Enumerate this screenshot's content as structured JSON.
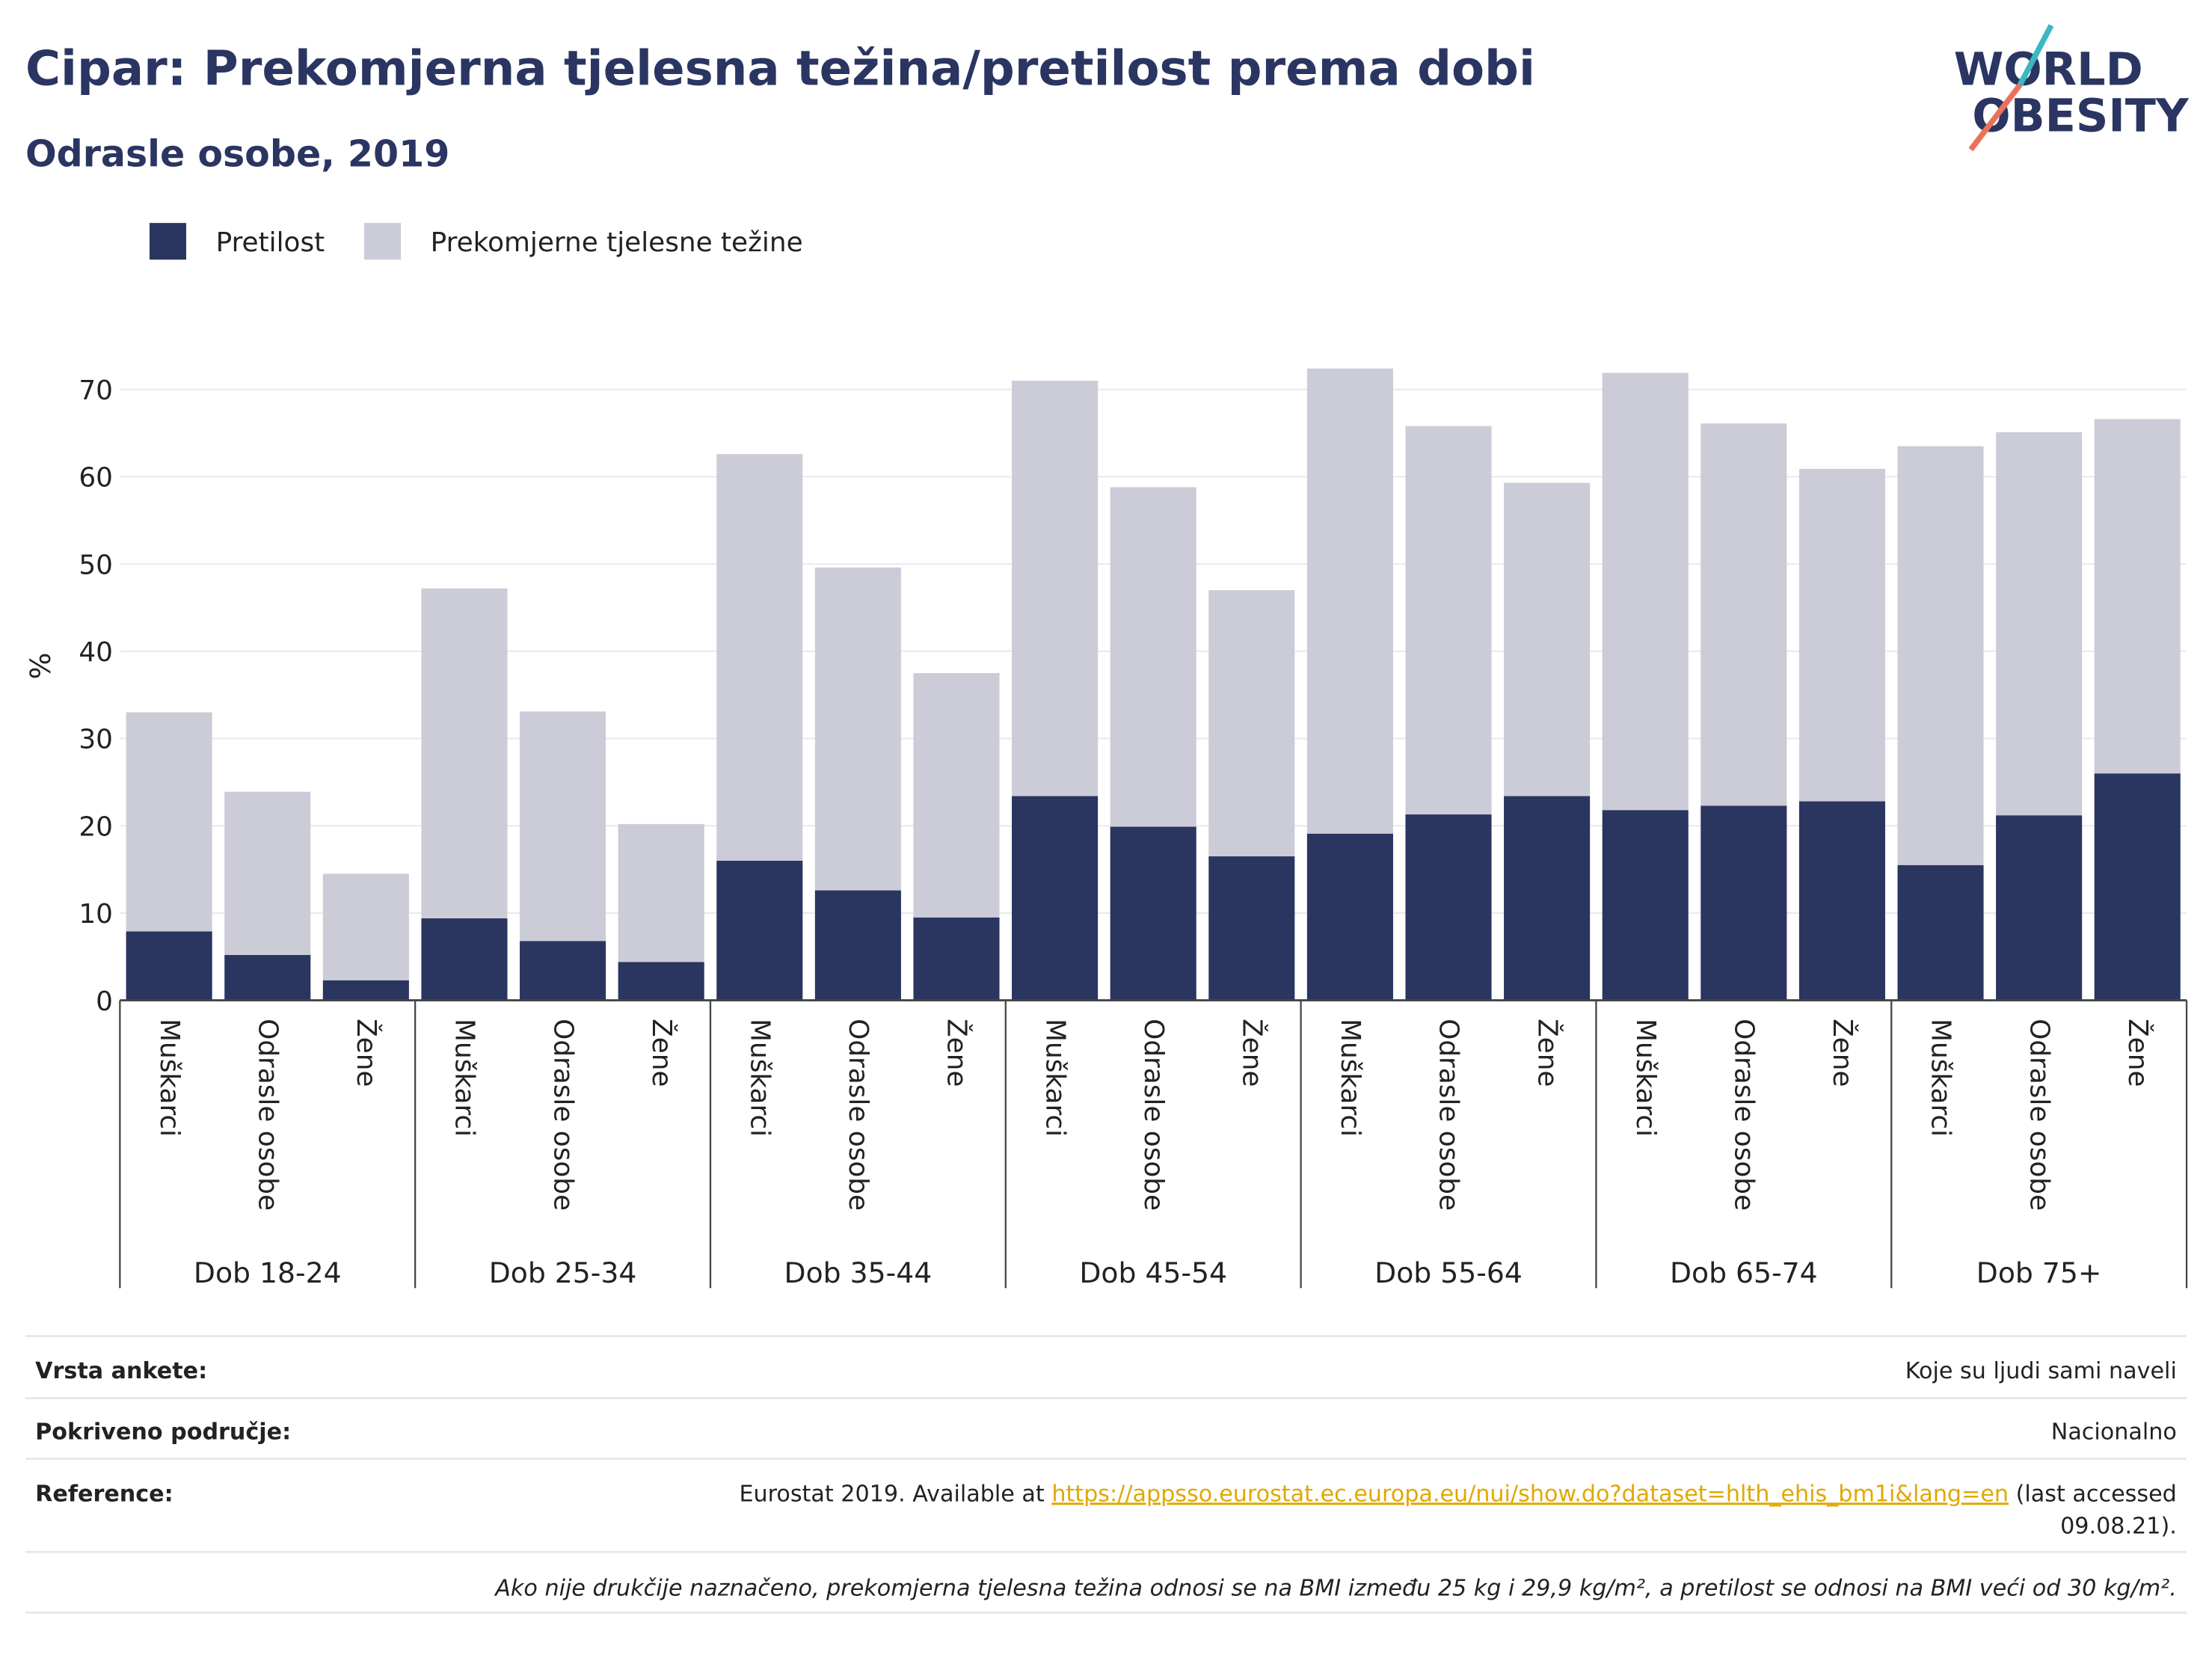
{
  "chart_data": {
    "type": "bar",
    "stacked": true,
    "title": "Cipar: Prekomjerna tjelesna težina/pretilost prema dobi",
    "subtitle": "Odrasle osobe, 2019",
    "y_label": "%",
    "categories": [
      "Muškarci",
      "Odrasle osobe",
      "Žene",
      "Muškarci",
      "Odrasle osobe",
      "Žene",
      "Muškarci",
      "Odrasle osobe",
      "Žene",
      "Muškarci",
      "Odrasle osobe",
      "Žene",
      "Muškarci",
      "Odrasle osobe",
      "Žene",
      "Muškarci",
      "Odrasle osobe",
      "Žene",
      "Muškarci",
      "Odrasle osobe",
      "Žene"
    ],
    "groups": [
      "Dob 18-24",
      "Dob 25-34",
      "Dob 35-44",
      "Dob 45-54",
      "Dob 55-64",
      "Dob 65-74",
      "Dob 75+"
    ],
    "series": [
      {
        "name": "Pretilost",
        "color": "#2a3560",
        "values": [
          7.9,
          5.2,
          2.3,
          9.4,
          6.8,
          4.4,
          16.0,
          12.6,
          9.5,
          23.4,
          19.9,
          16.5,
          19.1,
          21.3,
          23.4,
          21.8,
          22.3,
          22.8,
          15.5,
          21.2,
          26.0
        ]
      },
      {
        "name": "Prekomjerne tjelesne težine",
        "color": "#cbccd7",
        "values": [
          25.1,
          18.7,
          12.2,
          37.8,
          26.3,
          15.8,
          46.6,
          37.0,
          28.0,
          47.6,
          38.9,
          30.5,
          53.3,
          44.5,
          35.9,
          50.1,
          43.8,
          38.1,
          48.0,
          43.9,
          40.6
        ]
      }
    ],
    "ylim": [
      0,
      70
    ],
    "yticks": [
      0,
      10,
      20,
      30,
      40,
      50,
      60,
      70
    ],
    "grid": true,
    "legend": "top-left"
  },
  "logo": {
    "line1": "WORLD",
    "line2": "OBESITY"
  },
  "footer": {
    "rows": [
      {
        "label": "Vrsta ankete:",
        "value": "Koje su ljudi sami naveli"
      },
      {
        "label": "Pokriveno područje:",
        "value": "Nacionalno"
      }
    ],
    "reference": {
      "label": "Reference:",
      "prefix": "Eurostat 2019. Available at ",
      "url": "https://appsso.eurostat.ec.europa.eu/nui/show.do?dataset=hlth_ehis_bm1i&lang=en",
      "suffix": [
        " (last accessed",
        "09.08.21)."
      ]
    },
    "note": "Ako nije drukčije naznačeno, prekomjerna tjelesna težina odnosi se na BMI između 25 kg i 29,9 kg/m², a pretilost se odnosi na BMI veći od 30 kg/m²."
  }
}
